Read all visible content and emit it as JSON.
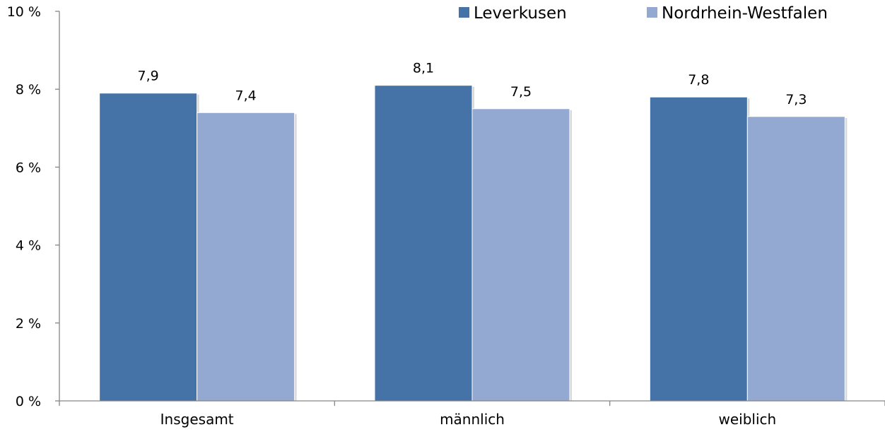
{
  "chart_data": {
    "type": "bar",
    "categories": [
      "Insgesamt",
      "männlich",
      "weiblich"
    ],
    "series": [
      {
        "name": "Leverkusen",
        "values": [
          7.9,
          8.1,
          7.8
        ],
        "labels": [
          "7,9",
          "8,1",
          "7,8"
        ],
        "color": "#4572A7"
      },
      {
        "name": "Nordrhein-Westfalen",
        "values": [
          7.4,
          7.5,
          7.3
        ],
        "labels": [
          "7,4",
          "7,5",
          "7,3"
        ],
        "color": "#94A9D1"
      }
    ],
    "ylim": [
      0,
      10
    ],
    "yticks": [
      0,
      2,
      4,
      6,
      8,
      10
    ],
    "ytick_labels": [
      "0 %",
      "2 %",
      "4 %",
      "6 %",
      "8 %",
      "10 %"
    ],
    "grid": false,
    "legend_position": "top-right"
  }
}
